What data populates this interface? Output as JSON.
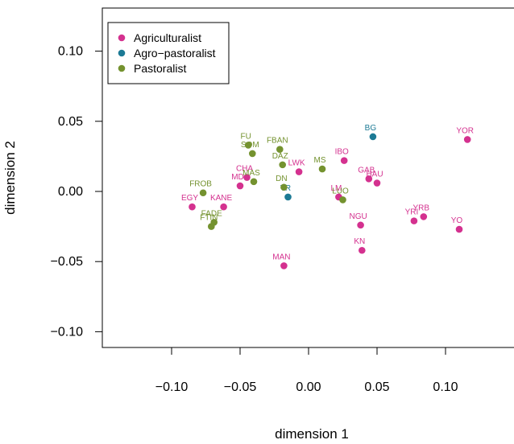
{
  "chart_data": {
    "type": "scatter",
    "xlabel": "dimension 1",
    "ylabel": "dimension 2",
    "xlim": [
      -0.145,
      0.145
    ],
    "ylim": [
      -0.11,
      0.13
    ],
    "xticks": [
      -0.1,
      -0.05,
      0.0,
      0.05,
      0.1
    ],
    "xtick_labels": [
      "−0.10",
      "−0.05",
      "0.00",
      "0.05",
      "0.10"
    ],
    "yticks": [
      -0.1,
      -0.05,
      0.0,
      0.05,
      0.1
    ],
    "ytick_labels": [
      "−0.10",
      "−0.05",
      "0.00",
      "0.05",
      "0.10"
    ],
    "grid": false,
    "legend_position": "top-left",
    "series": [
      {
        "name": "Agriculturalist",
        "color": "#d4318f",
        "points": [
          {
            "label": "YOR",
            "x": 0.116,
            "y": 0.037
          },
          {
            "label": "IBO",
            "x": 0.026,
            "y": 0.022
          },
          {
            "label": "GAB",
            "x": 0.044,
            "y": 0.009
          },
          {
            "label": "HAU",
            "x": 0.05,
            "y": 0.006
          },
          {
            "label": "LWK",
            "x": -0.007,
            "y": 0.014
          },
          {
            "label": "CHA",
            "x": -0.045,
            "y": 0.01
          },
          {
            "label": "MD",
            "x": -0.05,
            "y": 0.004
          },
          {
            "label": "EGY",
            "x": -0.085,
            "y": -0.011
          },
          {
            "label": "KANE",
            "x": -0.062,
            "y": -0.011
          },
          {
            "label": "LM",
            "x": 0.022,
            "y": -0.004
          },
          {
            "label": "NGU",
            "x": 0.038,
            "y": -0.024
          },
          {
            "label": "KN",
            "x": 0.039,
            "y": -0.042
          },
          {
            "label": "YRI",
            "x": 0.077,
            "y": -0.021
          },
          {
            "label": "YRB",
            "x": 0.084,
            "y": -0.018
          },
          {
            "label": "YO",
            "x": 0.11,
            "y": -0.027
          },
          {
            "label": "MAN",
            "x": -0.018,
            "y": -0.053
          }
        ]
      },
      {
        "name": "Agro−pastoralist",
        "color": "#1c7a95",
        "points": [
          {
            "label": "BG",
            "x": 0.047,
            "y": 0.039
          },
          {
            "label": "TR",
            "x": -0.015,
            "y": -0.004
          }
        ]
      },
      {
        "name": "Pastoralist",
        "color": "#74922f",
        "points": [
          {
            "label": "FU",
            "x": -0.044,
            "y": 0.033
          },
          {
            "label": "SOM",
            "x": -0.041,
            "y": 0.027
          },
          {
            "label": "FBAN",
            "x": -0.021,
            "y": 0.03
          },
          {
            "label": "DAZ",
            "x": -0.019,
            "y": 0.019
          },
          {
            "label": "MS",
            "x": 0.01,
            "y": 0.016
          },
          {
            "label": "MAS",
            "x": -0.04,
            "y": 0.007
          },
          {
            "label": "DN",
            "x": -0.018,
            "y": 0.003
          },
          {
            "label": "FROB",
            "x": -0.077,
            "y": -0.001
          },
          {
            "label": "LUO",
            "x": 0.025,
            "y": -0.006
          },
          {
            "label": "FADE",
            "x": -0.069,
            "y": -0.022
          },
          {
            "label": "FTIN",
            "x": -0.071,
            "y": -0.025
          }
        ]
      }
    ]
  }
}
